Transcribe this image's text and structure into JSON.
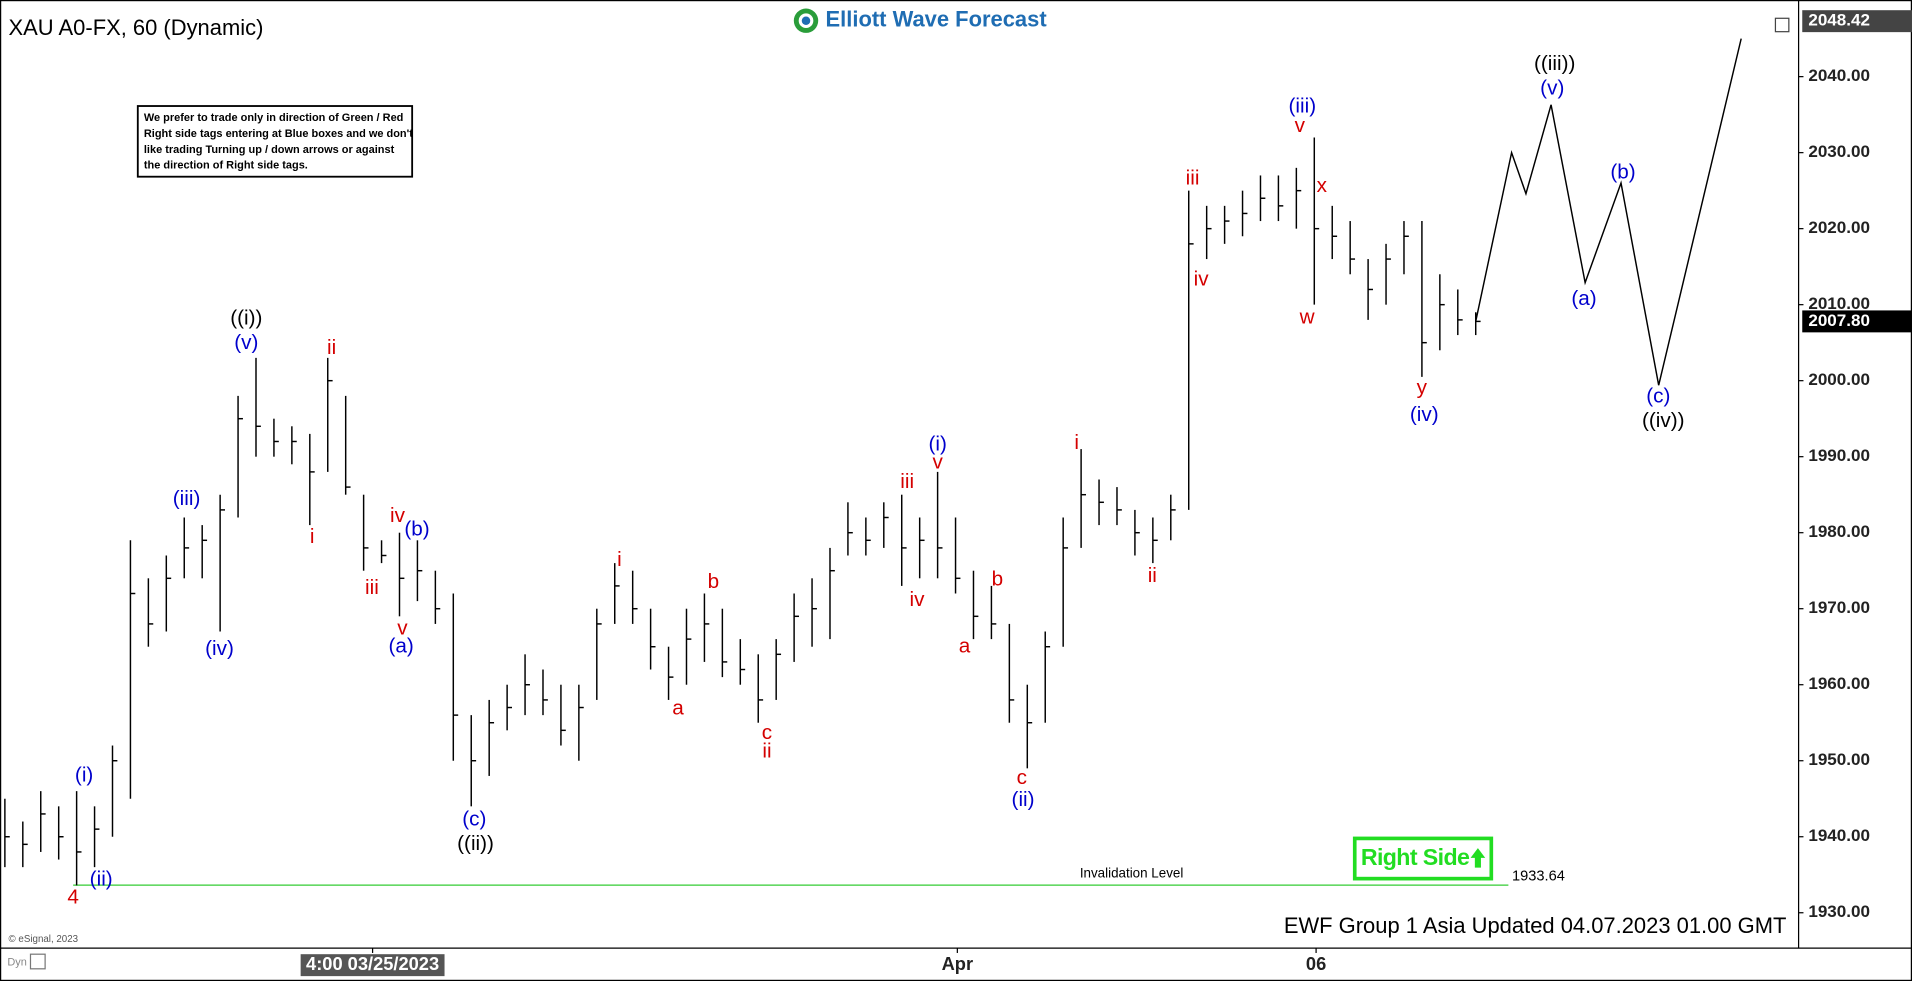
{
  "chart_data": {
    "type": "ohlc",
    "title": "XAU A0-FX, 60 (Dynamic)",
    "logo": "Elliott Wave Forecast",
    "note": [
      "We prefer to trade only in direction of Green / Red",
      "Right side tags entering at Blue boxes and we don't",
      "like trading Turning up / down arrows or against",
      "the direction of Right side tags."
    ],
    "x": [
      0,
      1,
      2,
      3,
      4,
      5,
      6,
      7,
      8,
      9,
      10,
      11,
      12,
      13,
      14,
      15,
      16,
      17,
      18,
      19,
      20,
      21,
      22,
      23,
      24,
      25,
      26,
      27,
      28,
      29,
      30,
      31,
      32,
      33,
      34,
      35,
      36,
      37,
      38,
      39,
      40,
      41,
      42,
      43,
      44,
      45,
      46,
      47,
      48,
      49,
      50,
      51,
      52,
      53,
      54,
      55,
      56,
      57,
      58,
      59,
      60,
      61,
      62,
      63,
      64,
      65,
      66,
      67,
      68,
      69,
      70,
      71,
      72,
      73,
      74,
      75,
      76,
      77,
      78,
      79,
      80,
      81,
      82
    ],
    "high": [
      1945,
      1942,
      1946,
      1944,
      1946,
      1944,
      1952,
      1979,
      1974,
      1977,
      1982,
      1981,
      1985,
      1998,
      2003,
      1995,
      1994,
      1993,
      2003,
      1998,
      1985,
      1979,
      1980,
      1979,
      1975,
      1972,
      1956,
      1958,
      1960,
      1964,
      1962,
      1960,
      1960,
      1970,
      1976,
      1975,
      1970,
      1965,
      1970,
      1972,
      1970,
      1966,
      1964,
      1966,
      1972,
      1974,
      1978,
      1984,
      1982,
      1984,
      1985,
      1982,
      1988,
      1982,
      1975,
      1973,
      1968,
      1960,
      1967,
      1982,
      1991,
      1987,
      1986,
      1983,
      1982,
      1985,
      2025,
      2023,
      2023,
      2025,
      2027,
      2027,
      2028,
      2032,
      2023,
      2021,
      2016,
      2018,
      2021,
      2021,
      2014,
      2012,
      2009
    ],
    "low": [
      1936,
      1936,
      1938,
      1937,
      1933.6,
      1936,
      1940,
      1945,
      1965,
      1967,
      1974,
      1974,
      1967,
      1982,
      1990,
      1990,
      1989,
      1981,
      1988,
      1985,
      1975,
      1976,
      1969,
      1971,
      1968,
      1950,
      1944,
      1948,
      1954,
      1956,
      1956,
      1952,
      1950,
      1958,
      1968,
      1968,
      1962,
      1958,
      1960,
      1963,
      1961,
      1960,
      1955,
      1958,
      1963,
      1965,
      1966,
      1977,
      1977,
      1978,
      1973,
      1974,
      1974,
      1972,
      1966,
      1966,
      1955,
      1949,
      1955,
      1965,
      1978,
      1981,
      1981,
      1977,
      1976,
      1979,
      1983,
      2016,
      2018,
      2019,
      2021,
      2021,
      2020,
      2010,
      2016,
      2014,
      2008,
      2010,
      2014,
      2000.5,
      2004,
      2006,
      2006
    ],
    "close": [
      1940,
      1939,
      1943,
      1940,
      1938,
      1941,
      1950,
      1972,
      1968,
      1974,
      1978,
      1979,
      1983,
      1995,
      1994,
      1992,
      1992,
      1988,
      2000,
      1986,
      1978,
      1977,
      1974,
      1975,
      1970,
      1956,
      1950,
      1955,
      1957,
      1960,
      1958,
      1954,
      1957,
      1968,
      1973,
      1970,
      1965,
      1961,
      1966,
      1968,
      1963,
      1962,
      1958,
      1964,
      1969,
      1970,
      1975,
      1980,
      1979,
      1982,
      1978,
      1979,
      1978,
      1974,
      1969,
      1968,
      1958,
      1955,
      1965,
      1978,
      1985,
      1984,
      1983,
      1980,
      1979,
      1983,
      2018,
      2020,
      2021,
      2022,
      2024,
      2023,
      2025,
      2020,
      2019,
      2016,
      2012,
      2016,
      2019,
      2005,
      2010,
      2008,
      2007.8
    ],
    "projection": {
      "x": [
        82,
        84,
        84.8,
        86.2,
        88.1,
        90.1,
        92.2,
        96.8
      ],
      "values": [
        2007.8,
        2030,
        2024.6,
        2036.3,
        2012.9,
        2026,
        1999.4,
        2045
      ]
    },
    "xlim": [
      0,
      100
    ],
    "xticks": [
      {
        "value": 20.5,
        "label": "4:00 03/25/2023"
      },
      {
        "value": 53.1,
        "label": "Apr"
      },
      {
        "value": 73.1,
        "label": "06"
      }
    ],
    "ylim": [
      1925.35,
      2048.8
    ],
    "yticks": [
      {
        "value": 1930,
        "label": "1930.00"
      },
      {
        "value": 1940,
        "label": "1940.00"
      },
      {
        "value": 1950,
        "label": "1950.00"
      },
      {
        "value": 1960,
        "label": "1960.00"
      },
      {
        "value": 1970,
        "label": "1970.00"
      },
      {
        "value": 1980,
        "label": "1980.00"
      },
      {
        "value": 1990,
        "label": "1990.00"
      },
      {
        "value": 2000,
        "label": "2000.00"
      },
      {
        "value": 2010,
        "label": "2010.00"
      },
      {
        "value": 2020,
        "label": "2020.00"
      },
      {
        "value": 2030,
        "label": "2030.00"
      },
      {
        "value": 2040,
        "label": "2040.00"
      }
    ],
    "last_price": {
      "value": 2007.8,
      "label": "2007.80"
    },
    "top_price": {
      "value": 2048.42,
      "label": "2048.42"
    },
    "invalidation": {
      "label": "Invalidation Level",
      "value": 1933.64,
      "color": "#33cc33"
    },
    "right_side": {
      "label": "Right Side",
      "color": "#22dd22"
    },
    "footer": "EWF Group 1 Asia Updated 04.07.2023 01.00 GMT",
    "copyright": "© eSignal, 2023",
    "corner": "Dyn",
    "bar_color": "#000000",
    "wave_labels": [
      {
        "text": "4",
        "color": "#d40000"
      },
      {
        "text": "(ii)",
        "color": "#0000cc"
      },
      {
        "text": "(i)",
        "color": "#0000cc"
      },
      {
        "text": "(iii)",
        "color": "#0000cc"
      },
      {
        "text": "(iv)",
        "color": "#0000cc"
      },
      {
        "text": "(v)",
        "color": "#0000cc"
      },
      {
        "text": "((i))",
        "color": "#000000"
      },
      {
        "text": "i",
        "color": "#d40000"
      },
      {
        "text": "ii",
        "color": "#d40000"
      },
      {
        "text": "iii",
        "color": "#d40000"
      },
      {
        "text": "iv",
        "color": "#d40000"
      },
      {
        "text": "v",
        "color": "#d40000"
      },
      {
        "text": "(a)",
        "color": "#0000cc"
      },
      {
        "text": "(b)",
        "color": "#0000cc"
      },
      {
        "text": "(c)",
        "color": "#0000cc"
      },
      {
        "text": "((ii))",
        "color": "#000000"
      },
      {
        "text": "i",
        "color": "#d40000"
      },
      {
        "text": "a",
        "color": "#d40000"
      },
      {
        "text": "b",
        "color": "#d40000"
      },
      {
        "text": "c",
        "color": "#d40000"
      },
      {
        "text": "ii",
        "color": "#d40000"
      },
      {
        "text": "iii",
        "color": "#d40000"
      },
      {
        "text": "iv",
        "color": "#d40000"
      },
      {
        "text": "v",
        "color": "#d40000"
      },
      {
        "text": "(i)",
        "color": "#0000cc"
      },
      {
        "text": "b",
        "color": "#d40000"
      },
      {
        "text": "a",
        "color": "#d40000"
      },
      {
        "text": "c",
        "color": "#d40000"
      },
      {
        "text": "(ii)",
        "color": "#0000cc"
      },
      {
        "text": "i",
        "color": "#d40000"
      },
      {
        "text": "ii",
        "color": "#d40000"
      },
      {
        "text": "iii",
        "color": "#d40000"
      },
      {
        "text": "iv",
        "color": "#d40000"
      },
      {
        "text": "(iii)",
        "color": "#0000cc"
      },
      {
        "text": "v",
        "color": "#d40000"
      },
      {
        "text": "w",
        "color": "#d40000"
      },
      {
        "text": "x",
        "color": "#d40000"
      },
      {
        "text": "y",
        "color": "#d40000"
      },
      {
        "text": "(iv)",
        "color": "#0000cc"
      },
      {
        "text": "((iii))",
        "color": "#000000"
      },
      {
        "text": "(v)",
        "color": "#0000cc"
      },
      {
        "text": "(a)",
        "color": "#0000cc"
      },
      {
        "text": "(b)",
        "color": "#0000cc"
      },
      {
        "text": "(c)",
        "color": "#0000cc"
      },
      {
        "text": "((iv))",
        "color": "#000000"
      }
    ]
  }
}
